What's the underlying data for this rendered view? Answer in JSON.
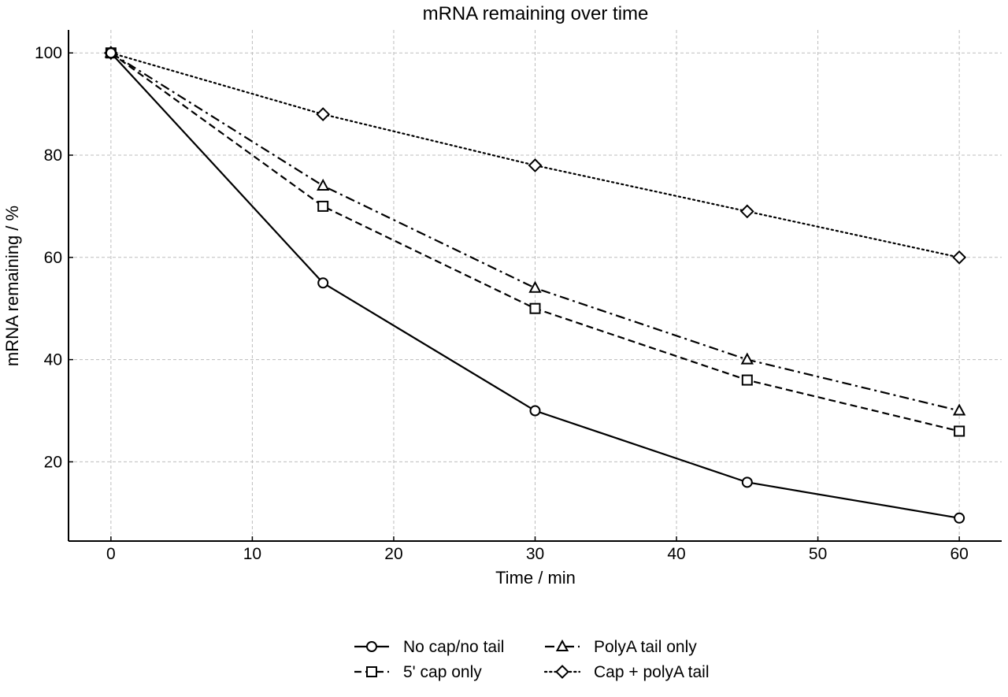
{
  "chart_data": {
    "type": "line",
    "title": "mRNA remaining over time",
    "xlabel": "Time / min",
    "ylabel": "mRNA remaining / %",
    "xlim": [
      -3,
      63
    ],
    "ylim": [
      4.5,
      104.5
    ],
    "xticks": [
      0,
      10,
      20,
      30,
      40,
      50,
      60
    ],
    "yticks": [
      20,
      40,
      60,
      80,
      100
    ],
    "grid": true,
    "legend_position": "bottom-center",
    "x": [
      0,
      15,
      30,
      45,
      60
    ],
    "series": [
      {
        "name": "No cap/no tail",
        "values": [
          100,
          55,
          30,
          16,
          9
        ],
        "marker": "circle",
        "linestyle": "solid",
        "color": "#000000"
      },
      {
        "name": "5' cap only",
        "values": [
          100,
          70,
          50,
          36,
          26
        ],
        "marker": "square",
        "linestyle": "dashed",
        "color": "#000000"
      },
      {
        "name": "PolyA tail only",
        "values": [
          100,
          74,
          54,
          40,
          30
        ],
        "marker": "triangle",
        "linestyle": "dashdot",
        "color": "#000000"
      },
      {
        "name": "Cap + polyA tail",
        "values": [
          100,
          88,
          78,
          69,
          60
        ],
        "marker": "diamond",
        "linestyle": "dotted",
        "color": "#000000"
      }
    ]
  }
}
